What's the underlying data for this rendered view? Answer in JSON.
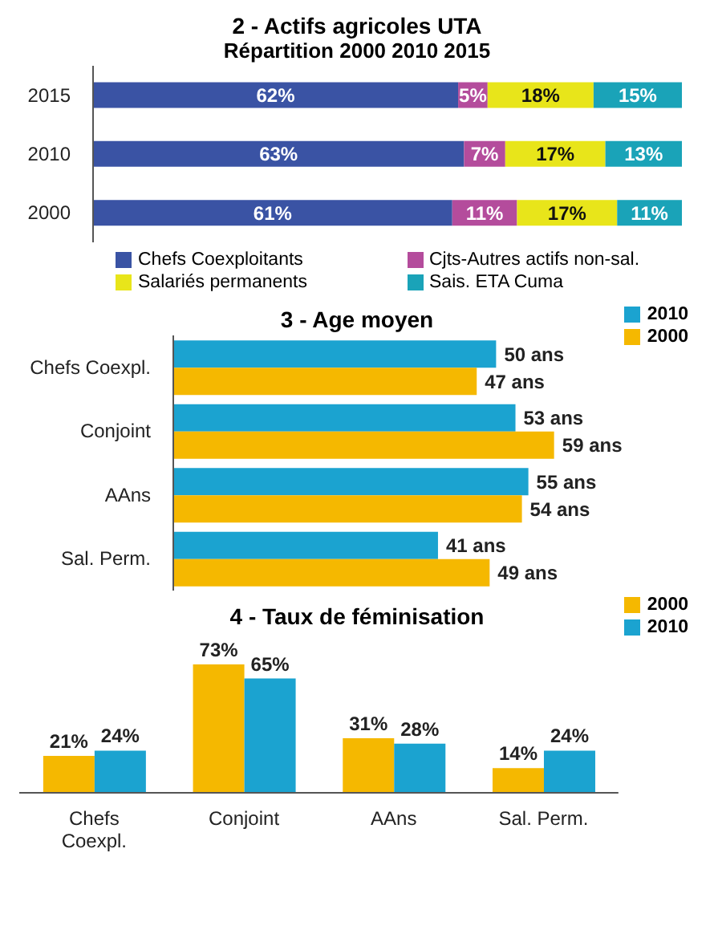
{
  "chart_data": [
    {
      "type": "bar",
      "title": "2 - Actifs agricoles UTA",
      "subtitle": "Répartition 2000 2010 2015",
      "orientation": "horizontal",
      "stacked": true,
      "categories": [
        "2015",
        "2010",
        "2000"
      ],
      "xlim": [
        0,
        100
      ],
      "tick_labels": "y",
      "legend": "bottom",
      "series": [
        {
          "name": "Chefs Coexploitants",
          "color": "#3a53a4",
          "values": [
            62,
            63,
            61
          ],
          "value_labels": [
            "62%",
            "63%",
            "61%"
          ]
        },
        {
          "name": "Cjts-Autres actifs non-sal.",
          "color": "#b44c9c",
          "values": [
            5,
            7,
            11
          ],
          "value_labels": [
            "5%",
            "7%",
            "11%"
          ]
        },
        {
          "name": "Salariés permanents",
          "color": "#e8e51a",
          "values": [
            18,
            17,
            17
          ],
          "value_labels": [
            "18%",
            "17%",
            "17%"
          ]
        },
        {
          "name": "Sais. ETA Cuma",
          "color": "#1aa3b8",
          "values": [
            15,
            13,
            11
          ],
          "value_labels": [
            "15%",
            "13%",
            "11%"
          ]
        }
      ]
    },
    {
      "type": "bar",
      "title": "3 - Age moyen",
      "orientation": "horizontal",
      "categories": [
        "Chefs Coexpl.",
        "Conjoint",
        "AAns",
        "Sal. Perm."
      ],
      "tick_labels": "y",
      "legend": "top right",
      "series": [
        {
          "name": "2010",
          "color": "#1ba3d0",
          "values": [
            50,
            53,
            55,
            41
          ],
          "value_labels": [
            "50 ans",
            "53 ans",
            "55 ans",
            "41 ans"
          ]
        },
        {
          "name": "2000",
          "color": "#f5b800",
          "values": [
            47,
            59,
            54,
            49
          ],
          "value_labels": [
            "47 ans",
            "59 ans",
            "54 ans",
            "49 ans"
          ]
        }
      ]
    },
    {
      "type": "bar",
      "title": "4 - Taux de féminisation",
      "categories": [
        "Chefs\nCoexpl.",
        "Conjoint",
        "AAns",
        "Sal. Perm."
      ],
      "tick_labels": "x",
      "legend": "top right",
      "series": [
        {
          "name": "2000",
          "color": "#f5b800",
          "values": [
            21,
            73,
            31,
            14
          ],
          "value_labels": [
            "21%",
            "73%",
            "31%",
            "14%"
          ]
        },
        {
          "name": "2010",
          "color": "#1ba3d0",
          "values": [
            24,
            65,
            28,
            24
          ],
          "value_labels": [
            "24%",
            "65%",
            "28%",
            "24%"
          ]
        }
      ]
    }
  ]
}
